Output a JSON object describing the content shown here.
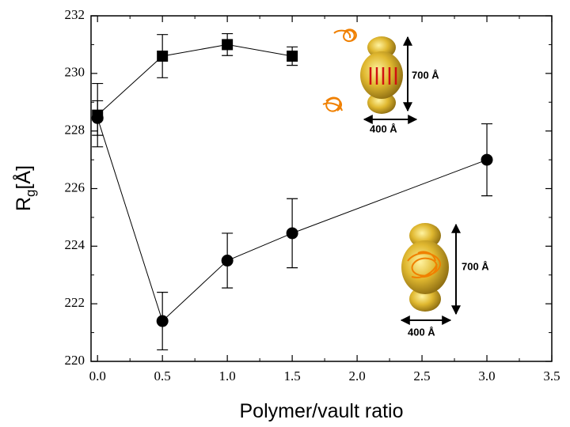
{
  "chart_data": {
    "type": "errorbar",
    "x_label": "Polymer/vault ratio",
    "y_label": {
      "main": "R",
      "sub": "g",
      "rest": "[Å]"
    },
    "xlim": [
      -0.05,
      3.5
    ],
    "xticks": [
      {
        "value": 0,
        "label": "0.0"
      },
      0.5,
      {
        "value": 1,
        "label": "1.0"
      },
      1.5,
      {
        "value": 2,
        "label": "2.0"
      },
      2.5,
      {
        "value": 3,
        "label": "3.0"
      },
      3.5
    ],
    "ylim": [
      220,
      232
    ],
    "yticks": [
      220,
      222,
      224,
      226,
      228,
      230,
      232
    ],
    "series": [
      {
        "marker": "square",
        "color": "#000000",
        "x": [
          0,
          0.5,
          1,
          1.5
        ],
        "values": [
          228.55,
          230.6,
          231.0,
          230.6
        ],
        "errors": [
          1.1,
          0.75,
          0.38,
          0.32
        ]
      },
      {
        "marker": "circle",
        "color": "#000000",
        "x": [
          0,
          0.5,
          1,
          1.5,
          3
        ],
        "values": [
          228.45,
          221.4,
          223.5,
          224.45,
          227.0
        ],
        "errors": [
          0.6,
          1.0,
          0.95,
          1.2,
          1.25
        ]
      }
    ],
    "annotations": [
      "700 Å",
      "400 Å",
      "700 Å",
      "400 Å"
    ]
  }
}
